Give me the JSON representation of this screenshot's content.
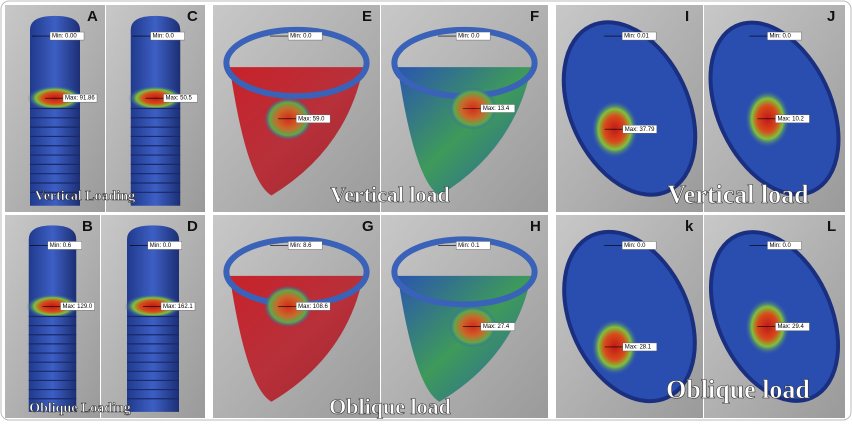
{
  "panels": [
    {
      "label": "A",
      "min": "Min: 0.00",
      "max": "Max: 91.86"
    },
    {
      "label": "C",
      "min": "Min: 0.0",
      "max": "Max: 50.5"
    },
    {
      "label": "B",
      "min": "Min: 0.6",
      "max": "Max: 129.0"
    },
    {
      "label": "D",
      "min": "Min: 0.0",
      "max": "Max: 162.1"
    },
    {
      "label": "E",
      "min": "Min: 0.0",
      "max": "Max: 59.0"
    },
    {
      "label": "F",
      "min": "Min: 0.0",
      "max": "Max: 13.4"
    },
    {
      "label": "G",
      "min": "Min: 8.6",
      "max": "Max: 108.6"
    },
    {
      "label": "H",
      "min": "Min: 0.1",
      "max": "Max: 27.4"
    },
    {
      "label": "I",
      "min": "Min: 0.01",
      "max": "Max: 37.79"
    },
    {
      "label": "J",
      "min": "Min: 0.0",
      "max": "Max: 10.2"
    },
    {
      "label": "k",
      "min": "Min: 0.0",
      "max": "Max: 28.1"
    },
    {
      "label": "L",
      "min": "Min: 0.0",
      "max": "Max: 29.4"
    }
  ],
  "captions": [
    {
      "text": "Vertical Loading"
    },
    {
      "text": "Oblique Loading"
    },
    {
      "text": "Vertical load"
    },
    {
      "text": "Oblique load"
    },
    {
      "text": "Vertical load"
    },
    {
      "text": "Oblique load"
    }
  ]
}
